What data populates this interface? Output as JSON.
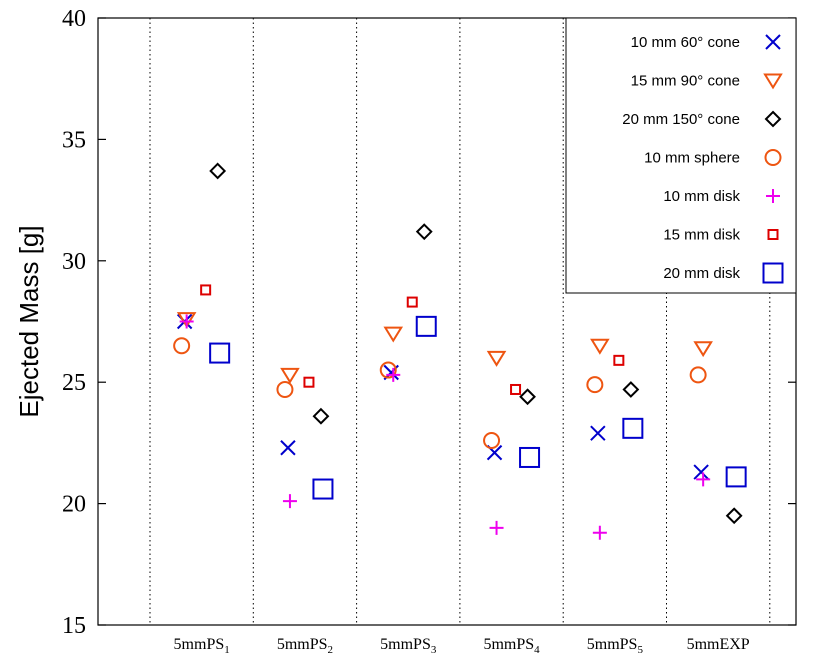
{
  "chart_data": {
    "type": "scatter",
    "title": "",
    "xlabel": "",
    "ylabel": "Ejected Mass [g]",
    "ylim": [
      15,
      40
    ],
    "yticks": [
      15,
      20,
      25,
      30,
      35,
      40
    ],
    "categories": [
      {
        "base": "5mmPS",
        "sub": "1"
      },
      {
        "base": "5mmPS",
        "sub": "2"
      },
      {
        "base": "5mmPS",
        "sub": "3"
      },
      {
        "base": "5mmPS",
        "sub": "4"
      },
      {
        "base": "5mmPS",
        "sub": "5"
      },
      {
        "base": "5mmEXP",
        "sub": ""
      }
    ],
    "grid": "vertical dotted separators between categories",
    "legend": "top-right",
    "series": [
      {
        "name": "10 mm 60° cone",
        "marker": "x",
        "color": "#0000cc",
        "values": [
          27.5,
          22.3,
          25.4,
          22.1,
          22.9,
          21.3
        ]
      },
      {
        "name": "15 mm 90° cone",
        "marker": "triangle-down",
        "color": "#ee5511",
        "values": [
          27.6,
          25.3,
          27.0,
          26.0,
          26.5,
          26.4
        ]
      },
      {
        "name": "20 mm 150° cone",
        "marker": "diamond",
        "color": "#000000",
        "values": [
          33.7,
          23.6,
          31.2,
          24.4,
          24.7,
          19.5
        ]
      },
      {
        "name": "10 mm sphere",
        "marker": "circle",
        "color": "#ee5511",
        "values": [
          26.5,
          24.7,
          25.5,
          22.6,
          24.9,
          25.3
        ]
      },
      {
        "name": "10 mm disk",
        "marker": "plus",
        "color": "#ee00ee",
        "values": [
          27.5,
          20.1,
          25.3,
          19.0,
          18.8,
          21.0
        ]
      },
      {
        "name": "15 mm disk",
        "marker": "square-small",
        "color": "#dd0000",
        "values": [
          28.8,
          25.0,
          28.3,
          24.7,
          25.9,
          null
        ]
      },
      {
        "name": "20 mm disk",
        "marker": "square",
        "color": "#0000cc",
        "values": [
          26.2,
          20.6,
          27.3,
          21.9,
          23.1,
          21.1
        ]
      }
    ]
  }
}
